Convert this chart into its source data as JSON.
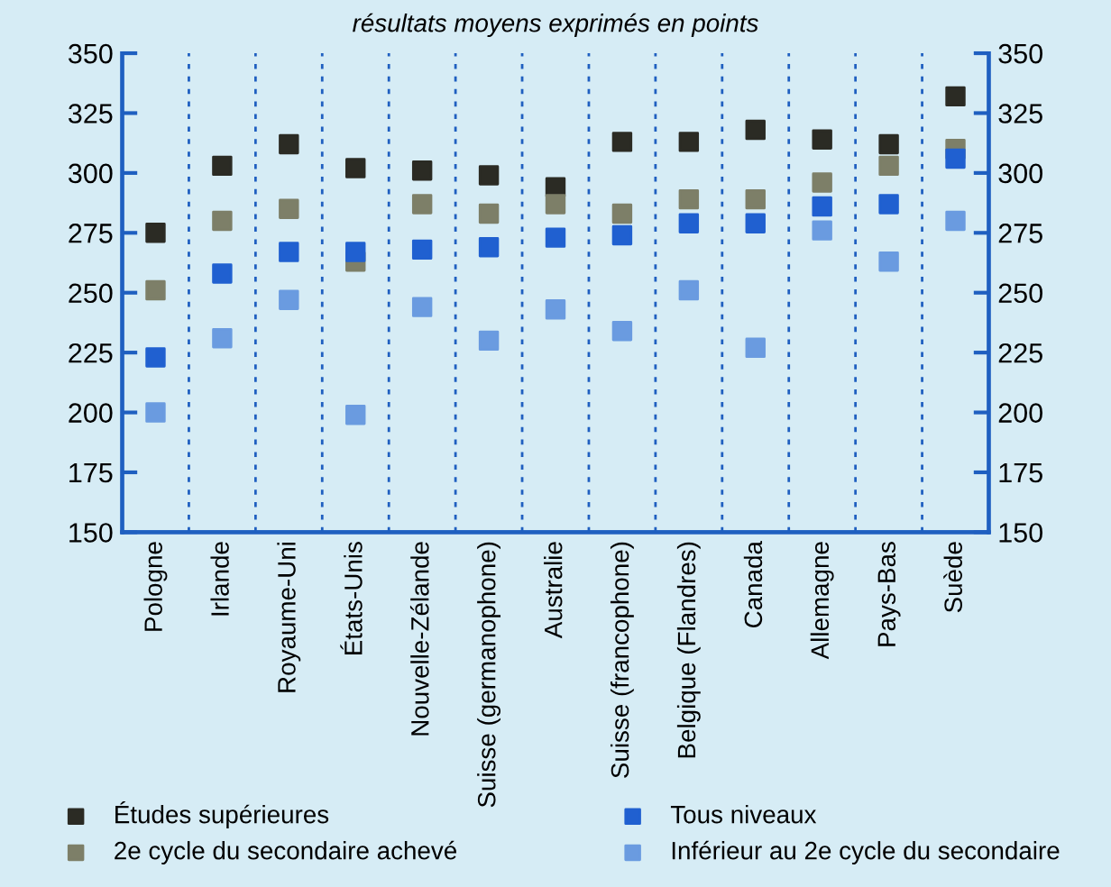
{
  "chart_data": {
    "type": "scatter",
    "subtitle": "résultats moyens exprimés en points",
    "categories": [
      "Pologne",
      "Irlande",
      "Royaume-Uni",
      "États-Unis",
      "Nouvelle-Zélande",
      "Suisse (germanophone)",
      "Australie",
      "Suisse (francophone)",
      "Belgique (Flandres)",
      "Canada",
      "Allemagne",
      "Pays-Bas",
      "Suède"
    ],
    "series": [
      {
        "name": "Études supérieures",
        "color": "#2b2b24",
        "values": [
          275,
          303,
          312,
          302,
          301,
          299,
          294,
          313,
          313,
          318,
          314,
          312,
          332
        ]
      },
      {
        "name": "2e cycle du secondaire achevé",
        "color": "#7d7f68",
        "values": [
          251,
          280,
          285,
          263,
          287,
          283,
          287,
          283,
          289,
          289,
          296,
          303,
          310
        ]
      },
      {
        "name": "Tous niveaux",
        "color": "#2060d0",
        "values": [
          223,
          258,
          267,
          267,
          268,
          269,
          273,
          274,
          279,
          279,
          286,
          287,
          306
        ]
      },
      {
        "name": "Inférieur au 2e cycle du secondaire",
        "color": "#6a9be0",
        "values": [
          200,
          231,
          247,
          199,
          244,
          230,
          243,
          234,
          251,
          227,
          276,
          263,
          280
        ]
      }
    ],
    "ylim": [
      150,
      350
    ],
    "yticks": [
      150,
      175,
      200,
      225,
      250,
      275,
      300,
      325,
      350
    ],
    "y2lim": [
      150,
      350
    ],
    "y2ticks": [
      150,
      175,
      200,
      225,
      250,
      275,
      300,
      325,
      350
    ],
    "marker": "square",
    "legend": "bottom"
  }
}
